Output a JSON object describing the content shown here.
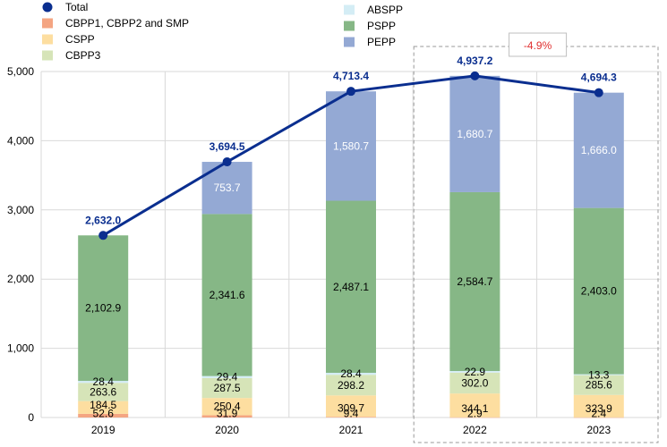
{
  "chart_data": {
    "type": "bar",
    "stacked": true,
    "categories": [
      "2019",
      "2020",
      "2021",
      "2022",
      "2023"
    ],
    "ylim": [
      0,
      5000
    ],
    "yticks": [
      0,
      1000,
      2000,
      3000,
      4000,
      5000
    ],
    "ytick_labels": [
      "0",
      "1,000",
      "2,000",
      "3,000",
      "4,000",
      "5,000"
    ],
    "grid": true,
    "legend_position": "top-left",
    "series": [
      {
        "name": "CBPP1, CBPP2 and SMP",
        "color": "#f4a582",
        "values": [
          52.6,
          31.9,
          9.4,
          2.9,
          2.4
        ],
        "labels": [
          "52.6",
          "31.9",
          "9.4",
          "2.9",
          "2.4"
        ]
      },
      {
        "name": "CSPP",
        "color": "#fddea0",
        "values": [
          184.5,
          250.4,
          309.7,
          344.1,
          323.9
        ],
        "labels": [
          "184.5",
          "250.4",
          "309.7",
          "344.1",
          "323.9"
        ]
      },
      {
        "name": "CBPP3",
        "color": "#d6e4b8",
        "values": [
          263.6,
          287.5,
          298.2,
          302.0,
          285.6
        ],
        "labels": [
          "263.6",
          "287.5",
          "298.2",
          "302.0",
          "285.6"
        ]
      },
      {
        "name": "ABSPP",
        "color": "#d4edf5",
        "values": [
          28.4,
          29.4,
          28.4,
          22.9,
          13.3
        ],
        "labels": [
          "28.4",
          "29.4",
          "28.4",
          "22.9",
          "13.3"
        ]
      },
      {
        "name": "PSPP",
        "color": "#86b786",
        "values": [
          2102.9,
          2341.6,
          2487.1,
          2584.7,
          2403.0
        ],
        "labels": [
          "2,102.9",
          "2,341.6",
          "2,487.1",
          "2,584.7",
          "2,403.0"
        ]
      },
      {
        "name": "PEPP",
        "color": "#94a9d4",
        "values": [
          0,
          753.7,
          1580.7,
          1680.7,
          1666.0
        ],
        "labels": [
          "",
          "753.7",
          "1,580.7",
          "1,680.7",
          "1,666.0"
        ]
      }
    ],
    "total": {
      "name": "Total",
      "color": "#0a2e8f",
      "values": [
        2632.0,
        3694.5,
        4713.4,
        4937.2,
        4694.3
      ],
      "labels": [
        "2,632.0",
        "3,694.5",
        "4,713.4",
        "4,937.2",
        "4,694.3"
      ]
    },
    "legend_left": [
      {
        "name": "Total",
        "color": "#0a2e8f",
        "marker": "circle"
      },
      {
        "name": "CBPP1, CBPP2 and SMP",
        "color": "#f4a582",
        "marker": "square"
      },
      {
        "name": "CSPP",
        "color": "#fddea0",
        "marker": "square"
      },
      {
        "name": "CBPP3",
        "color": "#d6e4b8",
        "marker": "square"
      }
    ],
    "legend_right": [
      {
        "name": "ABSPP",
        "color": "#d4edf5",
        "marker": "square"
      },
      {
        "name": "PSPP",
        "color": "#86b786",
        "marker": "square"
      },
      {
        "name": "PEPP",
        "color": "#94a9d4",
        "marker": "square"
      }
    ],
    "annotation": {
      "text": "-4.9%",
      "color": "#e03030",
      "highlight": [
        "2022",
        "2023"
      ]
    }
  }
}
